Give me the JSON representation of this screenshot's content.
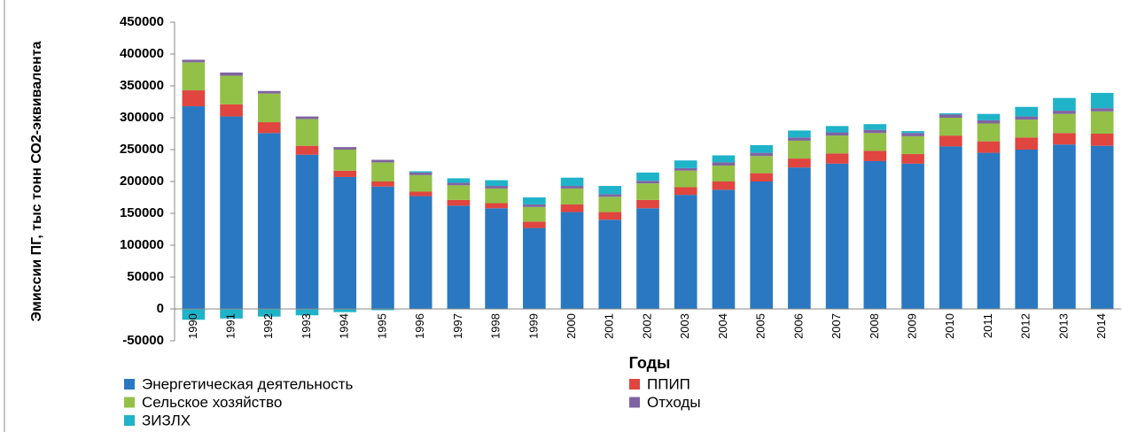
{
  "chart_data": {
    "type": "stacked_bar",
    "y_label": "Эмиссии ПГ, тыс тонн СО2-эквивалента",
    "x_label": "Годы",
    "categories": [
      "1990",
      "1991",
      "1992",
      "1993",
      "1994",
      "1995",
      "1996",
      "1997",
      "1998",
      "1999",
      "2000",
      "2001",
      "2002",
      "2003",
      "2004",
      "2005",
      "2006",
      "2007",
      "2008",
      "2009",
      "2010",
      "2011",
      "2012",
      "2013",
      "2014"
    ],
    "series": [
      {
        "name": "Энергетическая деятельность",
        "color": "#2a78c2",
        "values": [
          318000,
          302000,
          276000,
          242000,
          207000,
          192000,
          177000,
          162000,
          158000,
          127000,
          152000,
          140000,
          158000,
          179000,
          187000,
          200000,
          222000,
          228000,
          232000,
          228000,
          255000,
          245000,
          250000,
          258000,
          256000
        ]
      },
      {
        "name": "ППИП",
        "color": "#e0453f",
        "values": [
          25000,
          19000,
          17000,
          14000,
          10000,
          8000,
          7000,
          9000,
          8000,
          10000,
          12000,
          12000,
          13000,
          12000,
          13000,
          13000,
          14000,
          16000,
          16000,
          15000,
          17000,
          18000,
          19000,
          18000,
          19000
        ]
      },
      {
        "name": "Сельское хозяйство",
        "color": "#93c047",
        "values": [
          44000,
          45000,
          45000,
          42000,
          33000,
          30000,
          26000,
          23000,
          23000,
          23000,
          25000,
          24000,
          26000,
          26000,
          25000,
          27000,
          28000,
          28000,
          28000,
          28000,
          28000,
          28000,
          28000,
          30000,
          35000
        ]
      },
      {
        "name": "Отходы",
        "color": "#8064a2",
        "values": [
          4000,
          5000,
          4000,
          4000,
          4000,
          4000,
          4000,
          4000,
          4000,
          4000,
          4000,
          4000,
          4000,
          4000,
          5000,
          5000,
          5000,
          5000,
          5000,
          5000,
          5000,
          5000,
          5000,
          5000,
          5000
        ]
      },
      {
        "name": "ЗИЗЛХ",
        "color": "#1fb3c9",
        "values": [
          -17000,
          -15000,
          -12000,
          -10000,
          -5000,
          -2000,
          2000,
          7000,
          9000,
          11000,
          13000,
          13000,
          13000,
          12000,
          11000,
          12000,
          11000,
          10000,
          9000,
          3000,
          2000,
          10000,
          15000,
          20000,
          24000
        ]
      }
    ],
    "ylim": [
      -50000,
      450000
    ],
    "yticks": [
      -50000,
      0,
      50000,
      100000,
      150000,
      200000,
      250000,
      300000,
      350000,
      400000,
      450000
    ],
    "grid": false
  }
}
